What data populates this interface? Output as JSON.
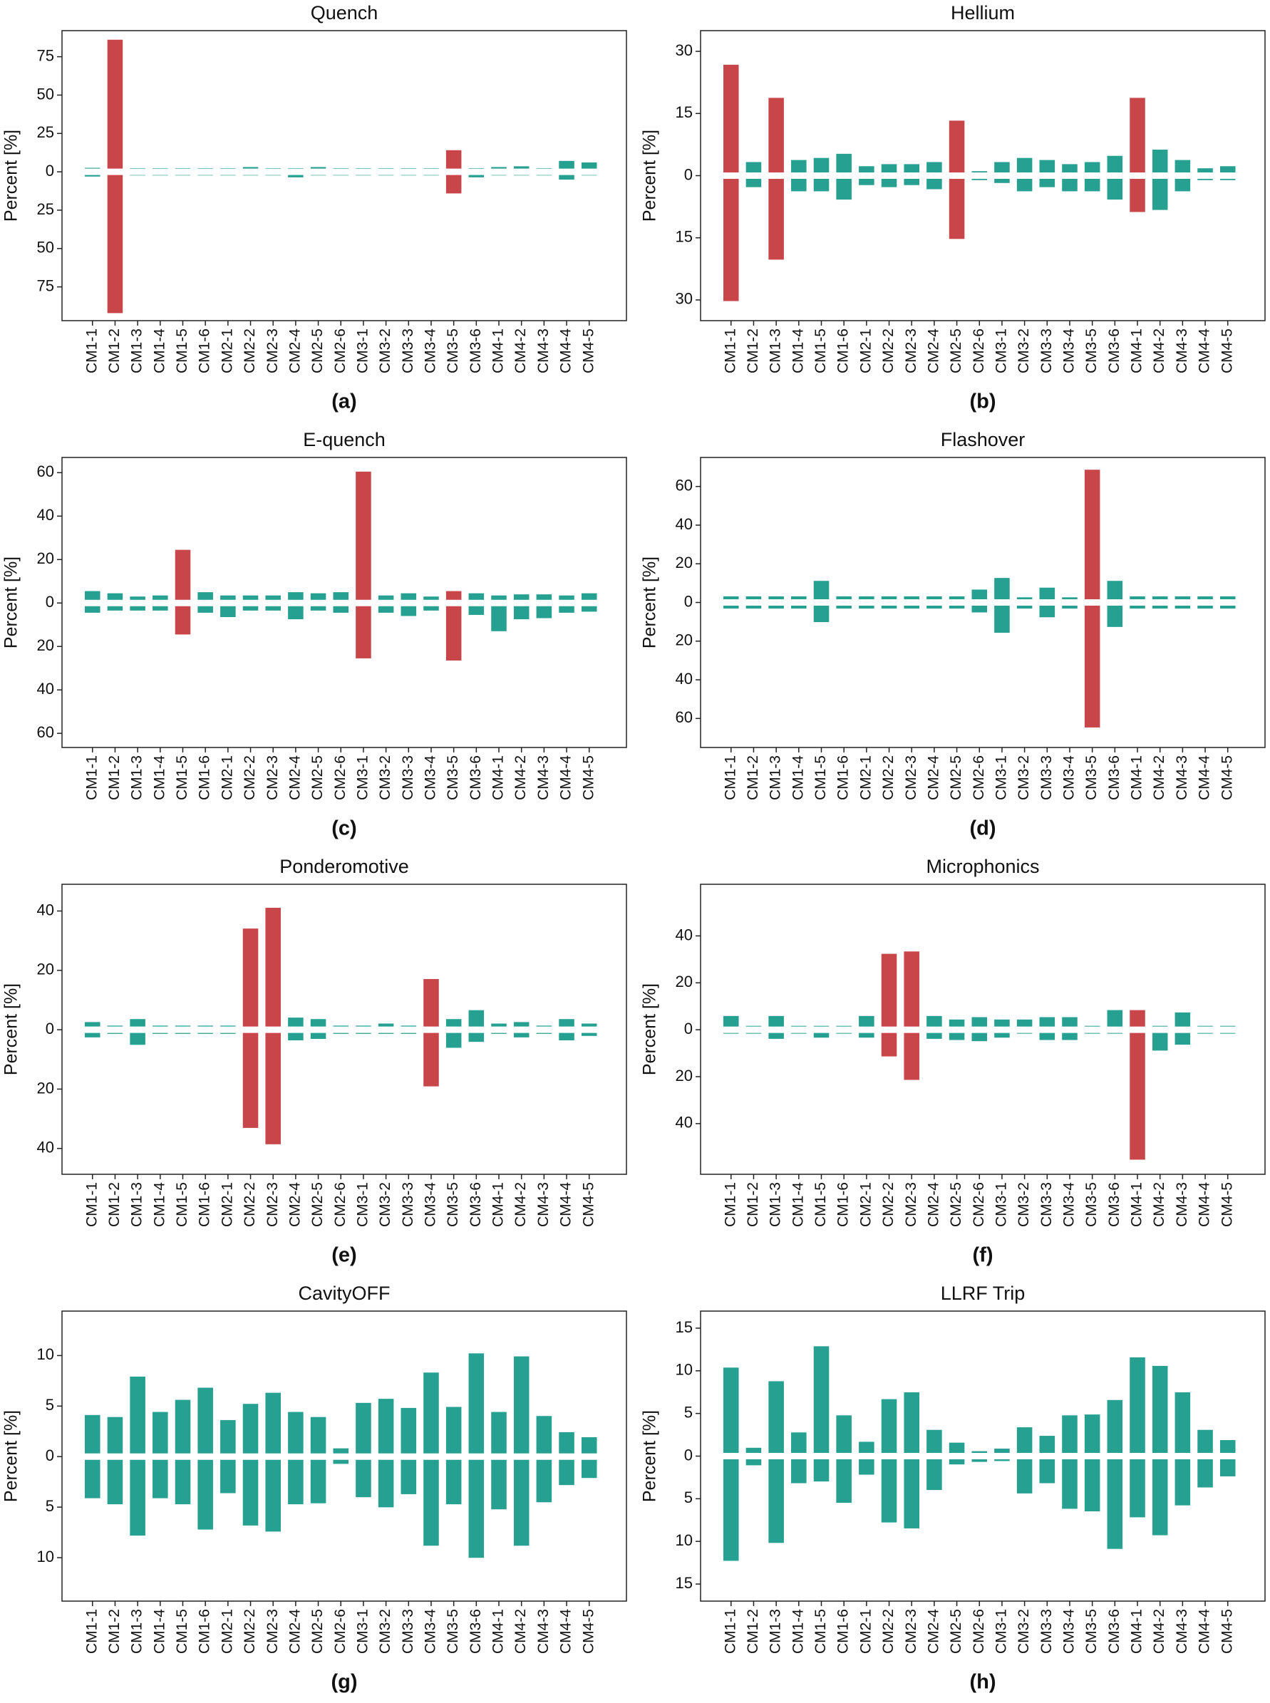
{
  "chart_data": [
    {
      "type": "bar",
      "title": "Quench",
      "label": "(a)",
      "ylabel": "Percent [%]",
      "categories": [
        "CM1-1",
        "CM1-2",
        "CM1-3",
        "CM1-4",
        "CM1-5",
        "CM1-6",
        "CM2-1",
        "CM2-2",
        "CM2-3",
        "CM2-4",
        "CM2-5",
        "CM2-6",
        "CM3-1",
        "CM3-2",
        "CM3-3",
        "CM3-4",
        "CM3-5",
        "CM3-6",
        "CM4-1",
        "CM4-2",
        "CM4-3",
        "CM4-4",
        "CM4-5"
      ],
      "series": [
        {
          "values": [
            0.5,
            84,
            0.3,
            0.3,
            0.3,
            0.3,
            0.3,
            1,
            0.3,
            0.3,
            1,
            0.3,
            0.3,
            0.3,
            0.3,
            0.3,
            12,
            0.3,
            1,
            1.5,
            0.3,
            5,
            4
          ]
        },
        {
          "values": [
            -1,
            -90,
            -0.3,
            -0.3,
            -0.3,
            -0.3,
            -0.3,
            -0.3,
            -0.3,
            -1.5,
            -0.3,
            -0.3,
            -0.3,
            -0.3,
            -0.3,
            -0.3,
            -12,
            -1.5,
            -0.3,
            -0.3,
            -0.3,
            -3,
            -0.3
          ]
        }
      ],
      "colors": [
        "#26a090",
        "#c8464a",
        "#26a090",
        "#26a090",
        "#26a090",
        "#26a090",
        "#26a090",
        "#26a090",
        "#26a090",
        "#26a090",
        "#26a090",
        "#26a090",
        "#26a090",
        "#26a090",
        "#26a090",
        "#26a090",
        "#c8464a",
        "#26a090",
        "#26a090",
        "#26a090",
        "#26a090",
        "#26a090",
        "#26a090"
      ],
      "ylim": [
        -97,
        92
      ],
      "yticks": [
        75,
        50,
        25,
        0,
        {
          "value": -25,
          "label": "25"
        },
        {
          "value": -50,
          "label": "50"
        },
        {
          "value": -75,
          "label": "75"
        }
      ]
    },
    {
      "type": "bar",
      "title": "Hellium",
      "label": "(b)",
      "ylabel": "Percent [%]",
      "categories": [
        "CM1-1",
        "CM1-2",
        "CM1-3",
        "CM1-4",
        "CM1-5",
        "CM1-6",
        "CM2-1",
        "CM2-2",
        "CM2-3",
        "CM2-4",
        "CM2-5",
        "CM2-6",
        "CM3-1",
        "CM3-2",
        "CM3-3",
        "CM3-4",
        "CM3-5",
        "CM3-6",
        "CM4-1",
        "CM4-2",
        "CM4-3",
        "CM4-4",
        "CM4-5"
      ],
      "series": [
        {
          "values": [
            26,
            2.5,
            18,
            3,
            3.5,
            4.5,
            1.5,
            2,
            2,
            2.5,
            12.5,
            0.3,
            2.5,
            3.5,
            3,
            2,
            2.5,
            4,
            18,
            5.5,
            3,
            1,
            1.5
          ]
        },
        {
          "values": [
            -29.5,
            -2,
            -19.5,
            -3,
            -3,
            -5,
            -1.5,
            -2,
            -1.5,
            -2.5,
            -14.5,
            -0.3,
            -1,
            -3,
            -2,
            -3,
            -3,
            -5,
            -8,
            -7.5,
            -3,
            -0.3,
            -0.3
          ]
        }
      ],
      "colors": [
        "#c8464a",
        "#26a090",
        "#c8464a",
        "#26a090",
        "#26a090",
        "#26a090",
        "#26a090",
        "#26a090",
        "#26a090",
        "#26a090",
        "#c8464a",
        "#26a090",
        "#26a090",
        "#26a090",
        "#26a090",
        "#26a090",
        "#26a090",
        "#26a090",
        "#c8464a",
        "#26a090",
        "#26a090",
        "#26a090",
        "#26a090"
      ],
      "ylim": [
        -35,
        35
      ],
      "yticks": [
        30,
        15,
        0,
        {
          "value": -15,
          "label": "15"
        },
        {
          "value": -30,
          "label": "30"
        }
      ]
    },
    {
      "type": "bar",
      "title": "E-quench",
      "label": "(c)",
      "ylabel": "Percent [%]",
      "categories": [
        "CM1-1",
        "CM1-2",
        "CM1-3",
        "CM1-4",
        "CM1-5",
        "CM1-6",
        "CM2-1",
        "CM2-2",
        "CM2-3",
        "CM2-4",
        "CM2-5",
        "CM2-6",
        "CM3-1",
        "CM3-2",
        "CM3-3",
        "CM3-4",
        "CM3-5",
        "CM3-6",
        "CM4-1",
        "CM4-2",
        "CM4-3",
        "CM4-4",
        "CM4-5"
      ],
      "series": [
        {
          "values": [
            4,
            3,
            1.5,
            2,
            23,
            3.5,
            2,
            2,
            2,
            3.5,
            3,
            3.5,
            59,
            2,
            3,
            1.5,
            4,
            3,
            2,
            2.5,
            2.5,
            2,
            3
          ]
        },
        {
          "values": [
            -3,
            -2,
            -2,
            -2,
            -13,
            -3,
            -5,
            -2,
            -2,
            -6,
            -2,
            -3,
            -24,
            -3,
            -4.5,
            -2,
            -25,
            -4,
            -11.5,
            -6,
            -5.5,
            -3,
            -2.5
          ]
        }
      ],
      "colors": [
        "#26a090",
        "#26a090",
        "#26a090",
        "#26a090",
        "#c8464a",
        "#26a090",
        "#26a090",
        "#26a090",
        "#26a090",
        "#26a090",
        "#26a090",
        "#26a090",
        "#c8464a",
        "#26a090",
        "#26a090",
        "#26a090",
        "#c8464a",
        "#26a090",
        "#26a090",
        "#26a090",
        "#26a090",
        "#26a090",
        "#26a090"
      ],
      "ylim": [
        -66.5,
        67
      ],
      "yticks": [
        60,
        40,
        20,
        0,
        {
          "value": -20,
          "label": "20"
        },
        {
          "value": -40,
          "label": "40"
        },
        {
          "value": -60,
          "label": "60"
        }
      ]
    },
    {
      "type": "bar",
      "title": "Flashover",
      "label": "(d)",
      "ylabel": "Percent [%]",
      "categories": [
        "CM1-1",
        "CM1-2",
        "CM1-3",
        "CM1-4",
        "CM1-5",
        "CM1-6",
        "CM2-1",
        "CM2-2",
        "CM2-3",
        "CM2-4",
        "CM2-5",
        "CM2-6",
        "CM3-1",
        "CM3-2",
        "CM3-3",
        "CM3-4",
        "CM3-5",
        "CM3-6",
        "CM4-1",
        "CM4-2",
        "CM4-3",
        "CM4-4",
        "CM4-5"
      ],
      "series": [
        {
          "values": [
            1.5,
            1.5,
            1.5,
            1.5,
            9.5,
            1.5,
            1.5,
            1.5,
            1.5,
            1.5,
            1.5,
            5,
            11,
            1,
            6,
            1,
            67,
            9.5,
            1.5,
            1.5,
            1.5,
            1.5,
            1.5
          ]
        },
        {
          "values": [
            -1.5,
            -1.5,
            -1.5,
            -1.5,
            -8.5,
            -1.5,
            -1.5,
            -1.5,
            -1.5,
            -1.5,
            -1.5,
            -3.5,
            -14,
            -1.5,
            -6,
            -1.5,
            -63,
            -11,
            -1.5,
            -1.5,
            -1.5,
            -1.5,
            -1.5
          ]
        }
      ],
      "colors": [
        "#26a090",
        "#26a090",
        "#26a090",
        "#26a090",
        "#26a090",
        "#26a090",
        "#26a090",
        "#26a090",
        "#26a090",
        "#26a090",
        "#26a090",
        "#26a090",
        "#26a090",
        "#26a090",
        "#26a090",
        "#26a090",
        "#c8464a",
        "#26a090",
        "#26a090",
        "#26a090",
        "#26a090",
        "#26a090",
        "#26a090"
      ],
      "ylim": [
        -75,
        75
      ],
      "yticks": [
        60,
        40,
        20,
        0,
        {
          "value": -20,
          "label": "20"
        },
        {
          "value": -40,
          "label": "40"
        },
        {
          "value": -60,
          "label": "60"
        }
      ]
    },
    {
      "type": "bar",
      "title": "Ponderomotive",
      "label": "(e)",
      "ylabel": "Percent [%]",
      "categories": [
        "CM1-1",
        "CM1-2",
        "CM1-3",
        "CM1-4",
        "CM1-5",
        "CM1-6",
        "CM2-1",
        "CM2-2",
        "CM2-3",
        "CM2-4",
        "CM2-5",
        "CM2-6",
        "CM3-1",
        "CM3-2",
        "CM3-3",
        "CM3-4",
        "CM3-5",
        "CM3-6",
        "CM4-1",
        "CM4-2",
        "CM4-3",
        "CM4-4",
        "CM4-5"
      ],
      "series": [
        {
          "values": [
            1.5,
            0.3,
            2.5,
            0.3,
            0.3,
            0.3,
            0.3,
            33,
            40,
            3,
            2.5,
            0.3,
            0.3,
            1,
            0.3,
            16,
            2.5,
            5.5,
            1,
            1.5,
            0.3,
            2.5,
            1
          ]
        },
        {
          "values": [
            -1.5,
            -0.3,
            -4,
            -0.3,
            -0.3,
            -0.3,
            -0.3,
            -32,
            -37.5,
            -2.5,
            -2,
            -0.3,
            -0.3,
            -0.3,
            -0.3,
            -18,
            -5,
            -3,
            -0.3,
            -1.5,
            -0.3,
            -2.5,
            -1
          ]
        }
      ],
      "colors": [
        "#26a090",
        "#26a090",
        "#26a090",
        "#26a090",
        "#26a090",
        "#26a090",
        "#26a090",
        "#c8464a",
        "#c8464a",
        "#26a090",
        "#26a090",
        "#26a090",
        "#26a090",
        "#26a090",
        "#26a090",
        "#c8464a",
        "#26a090",
        "#26a090",
        "#26a090",
        "#26a090",
        "#26a090",
        "#26a090",
        "#26a090"
      ],
      "ylim": [
        -48.7,
        49
      ],
      "yticks": [
        40,
        20,
        0,
        {
          "value": -20,
          "label": "20"
        },
        {
          "value": -40,
          "label": "40"
        }
      ]
    },
    {
      "type": "bar",
      "title": "Microphonics",
      "label": "(f)",
      "ylabel": "Percent [%]",
      "categories": [
        "CM1-1",
        "CM1-2",
        "CM1-3",
        "CM1-4",
        "CM1-5",
        "CM1-6",
        "CM2-1",
        "CM2-2",
        "CM2-3",
        "CM2-4",
        "CM2-5",
        "CM2-6",
        "CM3-1",
        "CM3-2",
        "CM3-3",
        "CM3-4",
        "CM3-5",
        "CM3-6",
        "CM4-1",
        "CM4-2",
        "CM4-3",
        "CM4-4",
        "CM4-5"
      ],
      "series": [
        {
          "values": [
            4.5,
            0.3,
            4.5,
            0.3,
            0.3,
            0.3,
            4.5,
            31,
            32,
            4.5,
            3,
            4,
            3,
            3,
            4,
            4,
            0.3,
            7,
            7,
            0.3,
            6,
            0.3,
            0.3
          ]
        },
        {
          "values": [
            -0.3,
            -0.3,
            -2.5,
            -0.3,
            -2,
            -0.3,
            -2,
            -10,
            -20,
            -2.5,
            -3,
            -3.5,
            -2,
            -0.3,
            -3,
            -3,
            -0.3,
            -0.3,
            -54,
            -7.5,
            -5,
            -0.3,
            -0.3
          ]
        }
      ],
      "colors": [
        "#26a090",
        "#26a090",
        "#26a090",
        "#26a090",
        "#26a090",
        "#26a090",
        "#26a090",
        "#c8464a",
        "#c8464a",
        "#26a090",
        "#26a090",
        "#26a090",
        "#26a090",
        "#26a090",
        "#26a090",
        "#26a090",
        "#26a090",
        "#26a090",
        "#c8464a",
        "#26a090",
        "#26a090",
        "#26a090",
        "#26a090"
      ],
      "ylim": [
        -61.6,
        62
      ],
      "yticks": [
        40,
        20,
        0,
        {
          "value": -20,
          "label": "20"
        },
        {
          "value": -40,
          "label": "40"
        }
      ]
    },
    {
      "type": "bar",
      "title": "CavityOFF",
      "label": "(g)",
      "ylabel": "Percent [%]",
      "categories": [
        "CM1-1",
        "CM1-2",
        "CM1-3",
        "CM1-4",
        "CM1-5",
        "CM1-6",
        "CM2-1",
        "CM2-2",
        "CM2-3",
        "CM2-4",
        "CM2-5",
        "CM2-6",
        "CM3-1",
        "CM3-2",
        "CM3-3",
        "CM3-4",
        "CM3-5",
        "CM3-6",
        "CM4-1",
        "CM4-2",
        "CM4-3",
        "CM4-4",
        "CM4-5"
      ],
      "series": [
        {
          "values": [
            3.8,
            3.6,
            7.6,
            4.1,
            5.3,
            6.5,
            3.3,
            4.9,
            6.0,
            4.1,
            3.6,
            0.5,
            5.0,
            5.4,
            4.5,
            8.0,
            4.6,
            9.9,
            4.1,
            9.6,
            3.7,
            2.1,
            1.6
          ]
        },
        {
          "values": [
            -3.8,
            -4.4,
            -7.5,
            -3.8,
            -4.4,
            -6.9,
            -3.3,
            -6.5,
            -7.1,
            -4.4,
            -4.3,
            -0.4,
            -3.7,
            -4.7,
            -3.4,
            -8.5,
            -4.4,
            -9.7,
            -4.9,
            -8.5,
            -4.2,
            -2.5,
            -1.8
          ]
        }
      ],
      "color": "#26a090",
      "ylim": [
        -14.3,
        14.4
      ],
      "yticks": [
        10,
        5,
        0,
        {
          "value": -5,
          "label": "5"
        },
        {
          "value": -10,
          "label": "10"
        }
      ]
    },
    {
      "type": "bar",
      "title": "LLRF Trip",
      "label": "(h)",
      "ylabel": "Percent [%]",
      "categories": [
        "CM1-1",
        "CM1-2",
        "CM1-3",
        "CM1-4",
        "CM1-5",
        "CM1-6",
        "CM2-1",
        "CM2-2",
        "CM2-3",
        "CM2-4",
        "CM2-5",
        "CM2-6",
        "CM3-1",
        "CM3-2",
        "CM3-3",
        "CM3-4",
        "CM3-5",
        "CM3-6",
        "CM4-1",
        "CM4-2",
        "CM4-3",
        "CM4-4",
        "CM4-5"
      ],
      "series": [
        {
          "values": [
            10,
            0.6,
            8.4,
            2.4,
            12.5,
            4.4,
            1.3,
            6.3,
            7.1,
            2.7,
            1.2,
            0.2,
            0.5,
            3,
            2,
            4.4,
            4.5,
            6.2,
            11.2,
            10.2,
            7.1,
            2.7,
            1.5
          ]
        },
        {
          "values": [
            -11.9,
            -0.7,
            -9.8,
            -2.8,
            -2.6,
            -5.1,
            -1.8,
            -7.4,
            -8.1,
            -3.6,
            -0.6,
            -0.3,
            -0.2,
            -4,
            -2.8,
            -5.8,
            -6.1,
            -10.5,
            -6.8,
            -8.9,
            -5.4,
            -3.3,
            -2
          ]
        }
      ],
      "color": "#26a090",
      "ylim": [
        -17,
        17
      ],
      "yticks": [
        15,
        10,
        5,
        0,
        {
          "value": -5,
          "label": "5"
        },
        {
          "value": -10,
          "label": "10"
        },
        {
          "value": -15,
          "label": "15"
        }
      ]
    }
  ]
}
